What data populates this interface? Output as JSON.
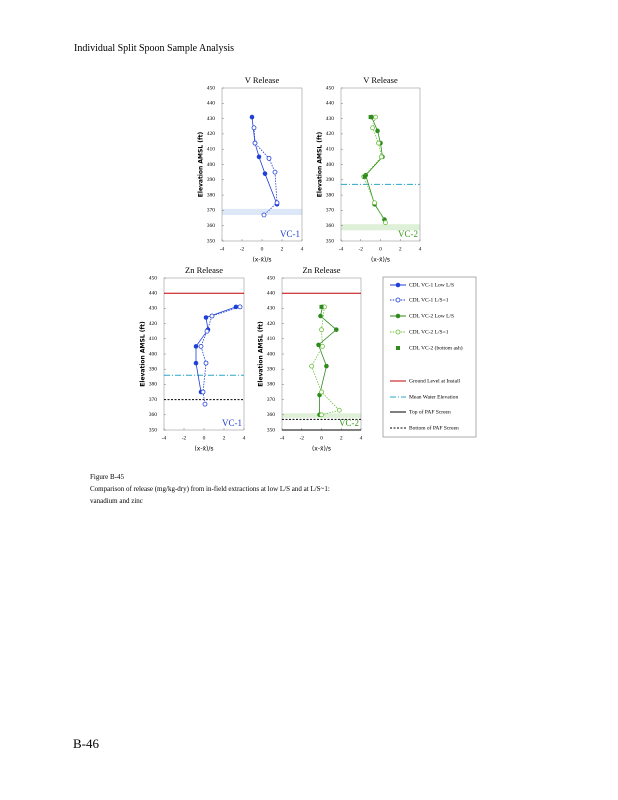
{
  "header": {
    "title": "Individual Split Spoon Sample Analysis"
  },
  "chart_data": [
    {
      "type": "scatter",
      "title": "V Release",
      "tag": "VC-1",
      "tag_color": "#1f3fd6",
      "y_label": "Elevation AMSL (ft)",
      "x_label": "(x-x̄)/s",
      "xlim": [
        -4,
        4
      ],
      "xticks": [
        -4,
        -2,
        0,
        2,
        4
      ],
      "ylim": [
        350,
        450
      ],
      "yticks": [
        350,
        360,
        370,
        380,
        390,
        400,
        410,
        420,
        430,
        440,
        450
      ],
      "series": [
        {
          "color": "#1f3fd6",
          "marker": "filled",
          "dash": "solid",
          "x": [
            -1.0,
            -0.7,
            -0.3,
            0.3,
            1.5
          ],
          "y": [
            431,
            414,
            405,
            394,
            374
          ]
        },
        {
          "color": "#1f3fd6",
          "marker": "open",
          "dash": "dotted",
          "x": [
            -0.8,
            -0.7,
            0.7,
            1.3,
            1.5,
            0.2
          ],
          "y": [
            424,
            414,
            404,
            395,
            375,
            367
          ]
        }
      ],
      "bands": [
        {
          "from": 367,
          "to": 371,
          "color": "#dce8f7"
        }
      ],
      "hlines": []
    },
    {
      "type": "scatter",
      "title": "V Release",
      "tag": "VC-2",
      "tag_color": "#3a9a1e",
      "y_label": "Elevation AMSL (ft)",
      "x_label": "(x-x̄)/s",
      "xlim": [
        -4,
        4
      ],
      "xticks": [
        -4,
        -2,
        0,
        2,
        4
      ],
      "ylim": [
        350,
        450
      ],
      "yticks": [
        350,
        360,
        370,
        380,
        390,
        400,
        410,
        420,
        430,
        440,
        450
      ],
      "series": [
        {
          "color": "#2e8b1e",
          "marker": "filled",
          "dash": "solid",
          "x": [
            -0.9,
            -0.3,
            0.0,
            0.2,
            -1.5,
            -0.6,
            0.4
          ],
          "y": [
            431,
            422,
            414,
            405,
            393,
            374,
            364
          ]
        },
        {
          "color": "#6abf3a",
          "marker": "open",
          "dash": "dotted",
          "x": [
            -0.5,
            -0.8,
            -0.2,
            0.1,
            -1.7,
            -0.6,
            0.5
          ],
          "y": [
            431,
            424,
            414,
            405,
            392,
            375,
            362
          ]
        },
        {
          "color": "#2e8b1e",
          "marker": "square",
          "dash": "none",
          "x": [
            -1.0,
            -1.6
          ],
          "y": [
            431,
            392
          ]
        }
      ],
      "bands": [
        {
          "from": 357,
          "to": 361,
          "color": "#dff0d8"
        }
      ],
      "hlines": [
        {
          "value": 387,
          "color": "#28a8c8",
          "dash": "6,2,1,2"
        }
      ]
    },
    {
      "type": "scatter",
      "title": "Zn Release",
      "tag": "VC-1",
      "tag_color": "#1f3fd6",
      "y_label": "Elevation AMSL (ft)",
      "x_label": "(x-x̄)/s",
      "xlim": [
        -4,
        4
      ],
      "xticks": [
        -4,
        -2,
        0,
        2,
        4
      ],
      "ylim": [
        350,
        450
      ],
      "yticks": [
        350,
        360,
        370,
        380,
        390,
        400,
        410,
        420,
        430,
        440,
        450
      ],
      "series": [
        {
          "color": "#1f3fd6",
          "marker": "filled",
          "dash": "solid",
          "x": [
            3.2,
            0.2,
            0.4,
            -0.8,
            -0.8,
            -0.3
          ],
          "y": [
            431,
            424,
            416,
            405,
            394,
            375
          ]
        },
        {
          "color": "#1f3fd6",
          "marker": "open",
          "dash": "dotted",
          "x": [
            3.6,
            0.8,
            0.3,
            -0.3,
            0.2,
            -0.1,
            0.1
          ],
          "y": [
            431,
            425,
            415,
            405,
            394,
            375,
            367
          ]
        }
      ],
      "bands": [],
      "hlines": [
        {
          "value": 440,
          "color": "#c00000",
          "dash": "none"
        },
        {
          "value": 386,
          "color": "#28a8c8",
          "dash": "6,2,1,2"
        },
        {
          "value": 370,
          "color": "#000000",
          "dash": "2,1.5"
        }
      ]
    },
    {
      "type": "scatter",
      "title": "Zn Release",
      "tag": "VC-2",
      "tag_color": "#3a9a1e",
      "y_label": "Elevation AMSL (ft)",
      "x_label": "(x-x̄)/s",
      "xlim": [
        -4,
        4
      ],
      "xticks": [
        -4,
        -2,
        0,
        2,
        4
      ],
      "ylim": [
        350,
        450
      ],
      "yticks": [
        350,
        360,
        370,
        380,
        390,
        400,
        410,
        420,
        430,
        440,
        450
      ],
      "series": [
        {
          "color": "#2e8b1e",
          "marker": "filled",
          "dash": "solid",
          "x": [
            0.1,
            -0.1,
            1.5,
            -0.3,
            0.5,
            -0.2,
            -0.2
          ],
          "y": [
            431,
            425,
            416,
            406,
            392,
            373,
            360
          ]
        },
        {
          "color": "#6abf3a",
          "marker": "open",
          "dash": "dotted",
          "x": [
            0.3,
            0.0,
            0.1,
            -1.0,
            0.0,
            1.8,
            0.0
          ],
          "y": [
            431,
            416,
            405,
            392,
            375,
            363,
            360
          ]
        },
        {
          "color": "#2e8b1e",
          "marker": "square",
          "dash": "none",
          "x": [
            0.0
          ],
          "y": [
            431
          ]
        }
      ],
      "bands": [
        {
          "from": 358,
          "to": 361,
          "color": "#dff0d8"
        }
      ],
      "hlines": [
        {
          "value": 440,
          "color": "#c00000",
          "dash": "none"
        },
        {
          "value": 357,
          "color": "#000000",
          "dash": "2,1.5"
        },
        {
          "value": 350,
          "color": "#000000",
          "dash": "none"
        }
      ]
    }
  ],
  "legend": [
    {
      "name": "CDL VC-1 Low L/S",
      "color": "#1f3fd6",
      "marker": "filled",
      "dash": "solid"
    },
    {
      "name": "CDL VC-1 L/S=1",
      "color": "#1f3fd6",
      "marker": "open",
      "dash": "dotted"
    },
    {
      "name": "CDL VC-2 Low L/S",
      "color": "#2e8b1e",
      "marker": "filled",
      "dash": "solid"
    },
    {
      "name": "CDL VC-2 L/S=1",
      "color": "#6abf3a",
      "marker": "open",
      "dash": "dotted"
    },
    {
      "name": "CDL VC-2 (bottom ash)",
      "color": "#2e8b1e",
      "marker": "square",
      "dash": "none"
    },
    {
      "name": "Ground Level at Install",
      "color": "#c00000",
      "marker": "none",
      "dash": "none"
    },
    {
      "name": "Mean Water Elevation",
      "color": "#28a8c8",
      "marker": "none",
      "dash": "6,2,1,2"
    },
    {
      "name": "Top of PAF Screen",
      "color": "#000000",
      "marker": "none",
      "dash": "none"
    },
    {
      "name": "Bottom of PAF Screen",
      "color": "#000000",
      "marker": "none",
      "dash": "2,1.5"
    }
  ],
  "caption": {
    "label": "Figure B-45",
    "text_1": "Comparison of release (mg/kg-dry) from in-field extractions at low L/S and at L/S~1:",
    "text_2": "vanadium and zinc"
  },
  "footer": {
    "page_number": "B-46"
  }
}
